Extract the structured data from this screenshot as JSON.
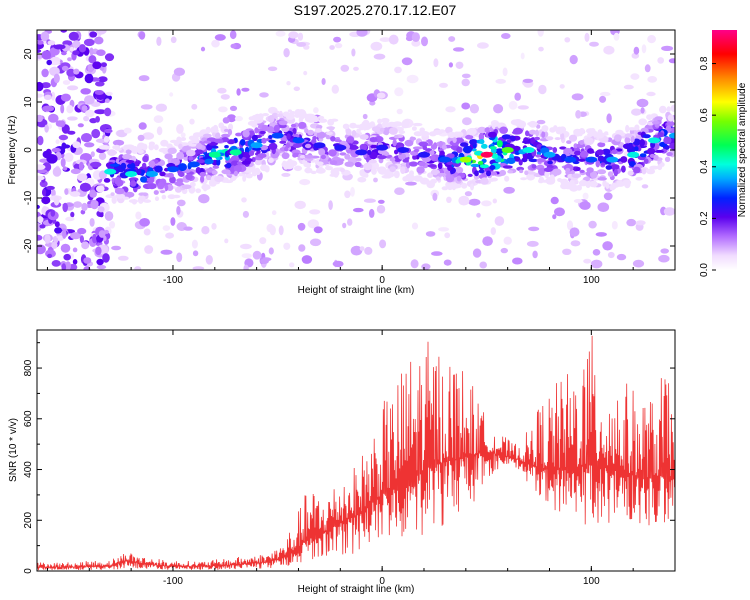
{
  "title": "S197.2025.270.17.12.E07",
  "chart_data": [
    {
      "type": "heatmap",
      "xlabel": "Height of straight line (km)",
      "ylabel": "Frequency (Hz)",
      "xlim": [
        -165,
        140
      ],
      "ylim": [
        -25,
        25
      ],
      "xticks": [
        "-100",
        "0",
        "100"
      ],
      "xtick_values": [
        -100,
        0,
        100
      ],
      "yticks": [
        "20",
        "10",
        "0",
        "-10",
        "-20"
      ],
      "ytick_values": [
        20,
        10,
        0,
        -10,
        -20
      ],
      "ridge": {
        "description": "dominant spectral ridge (frequency vs height)",
        "x": [
          -130,
          -120,
          -110,
          -100,
          -90,
          -80,
          -70,
          -60,
          -50,
          -40,
          -30,
          -20,
          -10,
          0,
          10,
          20,
          30,
          40,
          50,
          60,
          70,
          80,
          90,
          100,
          110,
          120,
          130,
          140
        ],
        "y": [
          -4.5,
          -5,
          -5,
          -4,
          -3,
          -1,
          -0.5,
          1,
          3,
          2,
          1,
          0.5,
          -0.5,
          0.5,
          0,
          -1,
          -2,
          -2,
          -1,
          0,
          0,
          -1,
          -2,
          -2,
          -2,
          -1,
          2,
          3
        ],
        "peak_amplitude": [
          0.4,
          0.4,
          0.35,
          0.3,
          0.3,
          0.45,
          0.45,
          0.35,
          0.3,
          0.3,
          0.25,
          0.25,
          0.25,
          0.25,
          0.25,
          0.25,
          0.3,
          0.6,
          0.9,
          0.55,
          0.4,
          0.35,
          0.3,
          0.3,
          0.35,
          0.4,
          0.4,
          0.35
        ]
      },
      "colorbar": {
        "label": "Normalized spectral amplitude",
        "range": [
          0.0,
          0.93
        ],
        "ticks": [
          "0.0",
          "0.2",
          "0.4",
          "0.6",
          "0.8"
        ],
        "tick_values": [
          0.0,
          0.2,
          0.4,
          0.6,
          0.8
        ]
      }
    },
    {
      "type": "line",
      "xlabel": "Height of straight line (km)",
      "ylabel": "SNR (10 * v/v)",
      "xlim": [
        -165,
        140
      ],
      "ylim": [
        0,
        950
      ],
      "xticks": [
        "-100",
        "0",
        "100"
      ],
      "xtick_values": [
        -100,
        0,
        100
      ],
      "yticks": [
        "0",
        "200",
        "400",
        "600",
        "800"
      ],
      "ytick_values": [
        0,
        200,
        400,
        600,
        800
      ],
      "series": [
        {
          "name": "SNR",
          "color": "#ee3333",
          "x": [
            -165,
            -150,
            -140,
            -130,
            -122,
            -115,
            -105,
            -95,
            -85,
            -75,
            -65,
            -55,
            -48,
            -42,
            -35,
            -28,
            -20,
            -12,
            -5,
            0,
            5,
            10,
            15,
            20,
            25,
            30,
            35,
            40,
            45,
            50,
            55,
            60,
            65,
            70,
            75,
            80,
            85,
            90,
            95,
            100,
            105,
            110,
            115,
            120,
            125,
            130,
            135,
            140
          ],
          "envelope_max": [
            35,
            35,
            40,
            45,
            80,
            60,
            45,
            40,
            40,
            50,
            60,
            70,
            110,
            200,
            340,
            300,
            380,
            420,
            560,
            660,
            720,
            820,
            880,
            920,
            900,
            880,
            850,
            800,
            700,
            600,
            560,
            520,
            500,
            560,
            660,
            720,
            760,
            800,
            880,
            940,
            860,
            780,
            760,
            720,
            700,
            680,
            820,
            620
          ],
          "envelope_min": [
            3,
            3,
            4,
            4,
            6,
            5,
            4,
            4,
            4,
            5,
            6,
            8,
            15,
            25,
            40,
            50,
            60,
            70,
            80,
            100,
            110,
            120,
            130,
            140,
            160,
            180,
            200,
            230,
            280,
            360,
            400,
            420,
            400,
            340,
            300,
            260,
            220,
            200,
            180,
            180,
            180,
            190,
            200,
            190,
            180,
            170,
            160,
            150
          ],
          "mean": [
            15,
            15,
            18,
            20,
            40,
            30,
            20,
            18,
            18,
            22,
            28,
            35,
            50,
            80,
            130,
            150,
            190,
            220,
            270,
            300,
            330,
            360,
            380,
            400,
            420,
            430,
            440,
            450,
            460,
            470,
            460,
            450,
            440,
            420,
            410,
            400,
            400,
            400,
            410,
            420,
            410,
            400,
            390,
            380,
            370,
            370,
            380,
            360
          ]
        }
      ]
    }
  ]
}
